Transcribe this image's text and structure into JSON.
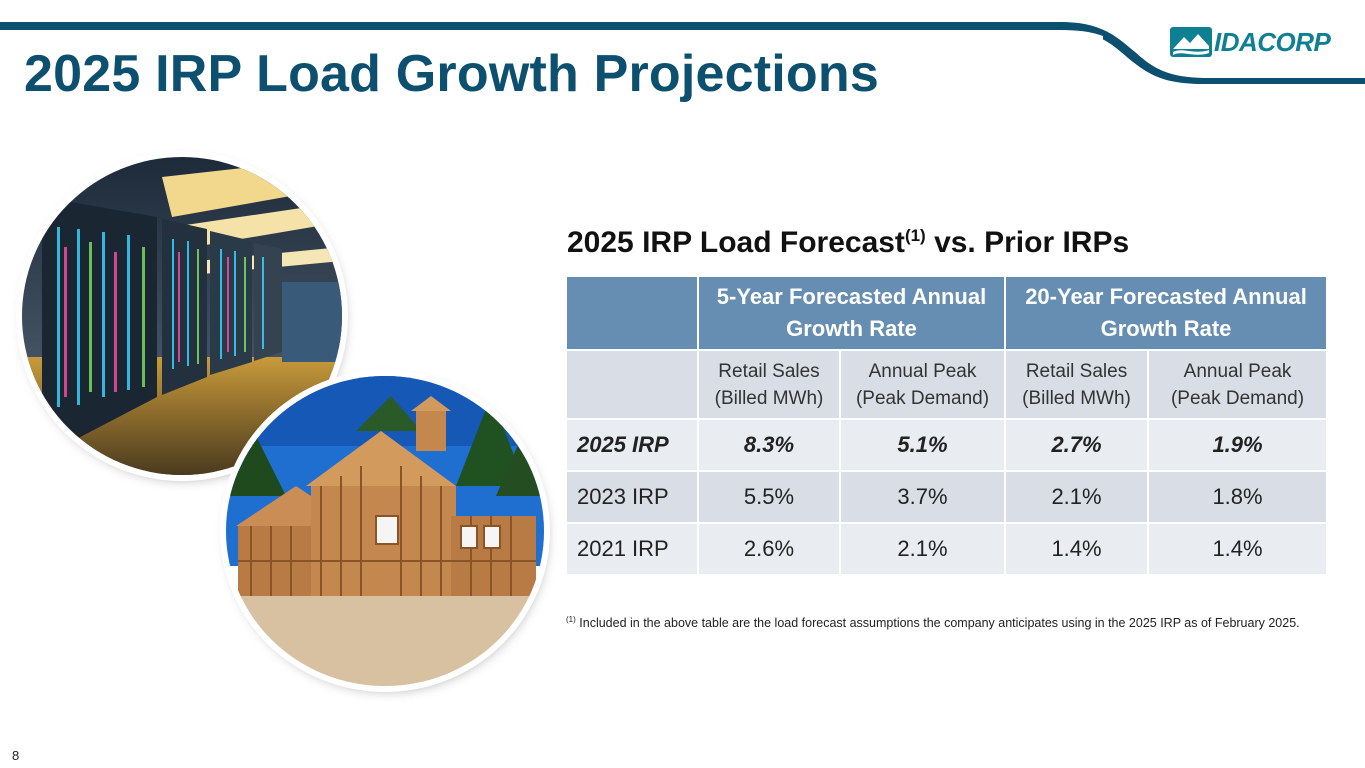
{
  "header": {
    "title": "2025 IRP Load Growth Projections",
    "logo_text": "IDACORP",
    "colors": {
      "title": "#0d4f6e",
      "swoosh": "#0d4f6e",
      "logo": "#0f7f93"
    }
  },
  "section": {
    "title": "2025 IRP Load Forecast",
    "title_sup": "(1)",
    "title_suffix": "vs. Prior IRPs"
  },
  "table": {
    "group_headers": [
      "5-Year Forecasted Annual Growth Rate",
      "20-Year Forecasted Annual Growth Rate"
    ],
    "sub_headers": [
      {
        "line1": "Retail Sales",
        "line2": "(Billed MWh)"
      },
      {
        "line1": "Annual Peak",
        "line2": "(Peak Demand)"
      },
      {
        "line1": "Retail Sales",
        "line2": "(Billed MWh)"
      },
      {
        "line1": "Annual Peak",
        "line2": "(Peak Demand)"
      }
    ],
    "rows": [
      {
        "label": "2025 IRP",
        "values": [
          "8.3%",
          "5.1%",
          "2.7%",
          "1.9%"
        ]
      },
      {
        "label": "2023 IRP",
        "values": [
          "5.5%",
          "3.7%",
          "2.1%",
          "1.8%"
        ]
      },
      {
        "label": "2021 IRP",
        "values": [
          "2.6%",
          "2.1%",
          "1.4%",
          "1.4%"
        ]
      }
    ],
    "colors": {
      "header_bg": "#668eb2",
      "sub_bg": "#d9dee6",
      "row_light": "#e9edf2"
    }
  },
  "footnote": {
    "marker": "(1)",
    "text": "Included in the above table are the load forecast assumptions the company anticipates using in the 2025 IRP as of February 2025."
  },
  "page_number": "8"
}
